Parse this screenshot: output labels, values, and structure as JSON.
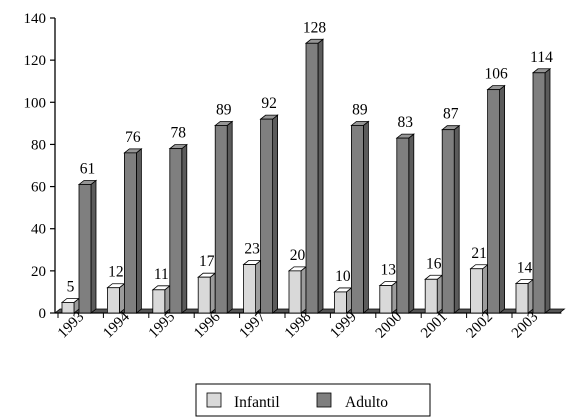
{
  "chart_data": {
    "type": "bar",
    "categories": [
      "1993",
      "1994",
      "1995",
      "1996",
      "1997",
      "1998",
      "1999",
      "2000",
      "2001",
      "2002",
      "2003"
    ],
    "series": [
      {
        "name": "Infantil",
        "values": [
          5,
          12,
          11,
          17,
          23,
          20,
          10,
          13,
          16,
          21,
          14
        ],
        "color": "#d9d9d9"
      },
      {
        "name": "Adulto",
        "values": [
          61,
          76,
          78,
          89,
          92,
          128,
          89,
          83,
          87,
          106,
          114
        ],
        "color": "#7f7f7f"
      }
    ],
    "ylim": [
      0,
      140
    ],
    "yticks": [
      0,
      20,
      40,
      60,
      80,
      100,
      120,
      140
    ],
    "xlabel": "",
    "ylabel": "",
    "title": "",
    "grid": false,
    "legend_position": "bottom",
    "style": "3d-bar"
  }
}
